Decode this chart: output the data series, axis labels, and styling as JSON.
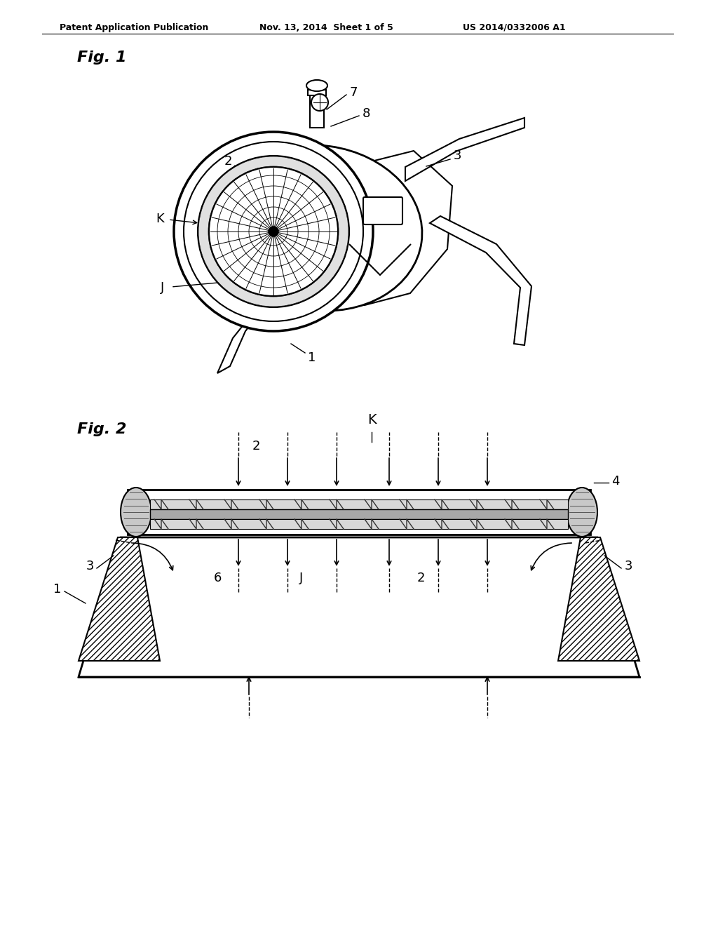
{
  "bg_color": "#ffffff",
  "header_left": "Patent Application Publication",
  "header_mid": "Nov. 13, 2014  Sheet 1 of 5",
  "header_right": "US 2014/0332006 A1",
  "fig1_label": "Fig. 1",
  "fig2_label": "Fig. 2",
  "line_color": "#000000"
}
